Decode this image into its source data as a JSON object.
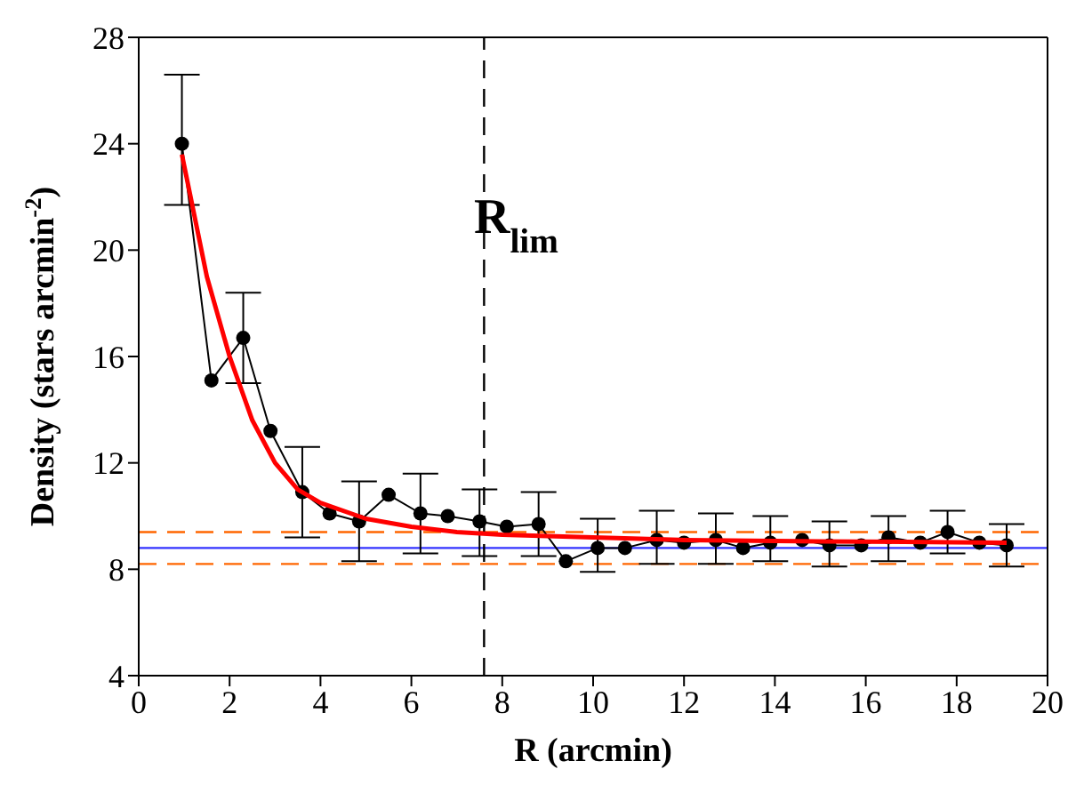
{
  "chart_data": {
    "type": "line",
    "xlabel": "R  (arcmin)",
    "ylabel": "Density (stars arcmin$^{-2}$)",
    "xlim": [
      0,
      20
    ],
    "xticks": [
      0,
      2,
      4,
      6,
      8,
      10,
      12,
      14,
      16,
      18,
      20
    ],
    "ylim": [
      4,
      28
    ],
    "yticks": [
      4,
      8,
      12,
      16,
      20,
      24,
      28
    ],
    "grid": false,
    "legend": false,
    "series": [
      {
        "color": "#000000",
        "marker": "circle",
        "x": [
          0.95,
          1.6,
          2.3,
          2.9,
          3.6,
          4.2,
          4.85,
          5.5,
          6.2,
          6.8,
          7.5,
          8.1,
          8.8,
          9.4,
          10.1,
          10.7,
          11.4,
          12.0,
          12.7,
          13.3,
          13.9,
          14.6,
          15.2,
          15.9,
          16.5,
          17.2,
          17.8,
          18.5,
          19.1
        ],
        "values": [
          24.0,
          15.1,
          16.7,
          13.2,
          10.9,
          10.1,
          9.8,
          10.8,
          10.1,
          10.0,
          9.8,
          9.6,
          9.7,
          8.3,
          8.8,
          8.8,
          9.1,
          9.0,
          9.1,
          8.8,
          9.0,
          9.1,
          8.9,
          8.9,
          9.2,
          9.0,
          9.4,
          9.0,
          8.9
        ],
        "errors": [
          [
            21.7,
            26.6
          ],
          null,
          [
            15.0,
            18.4
          ],
          null,
          [
            9.2,
            12.6
          ],
          null,
          [
            8.3,
            11.3
          ],
          null,
          [
            8.6,
            11.6
          ],
          null,
          [
            8.5,
            11.0
          ],
          null,
          [
            8.5,
            10.9
          ],
          null,
          [
            7.9,
            9.9
          ],
          null,
          [
            8.2,
            10.2
          ],
          null,
          [
            8.2,
            10.1
          ],
          null,
          [
            8.3,
            10.0
          ],
          null,
          [
            8.1,
            9.8
          ],
          null,
          [
            8.3,
            10.0
          ],
          null,
          [
            8.6,
            10.2
          ],
          null,
          [
            8.1,
            9.7
          ]
        ]
      },
      {
        "color": "#ff0000",
        "marker": "none",
        "x": [
          0.95,
          1.5,
          2.0,
          2.5,
          3.0,
          3.5,
          4.0,
          5.0,
          6.0,
          7.0,
          8.0,
          10.0,
          12.0,
          15.0,
          19.1
        ],
        "values": [
          23.6,
          19.0,
          16.0,
          13.6,
          12.0,
          11.0,
          10.5,
          9.9,
          9.6,
          9.4,
          9.3,
          9.2,
          9.1,
          9.05,
          9.0
        ]
      }
    ],
    "ref_lines": [
      {
        "axis": "y",
        "value": 8.8,
        "color": "#3333ff",
        "line_style": "solid"
      },
      {
        "axis": "y",
        "value": 9.4,
        "color": "#ff6600",
        "line_style": "dashed"
      },
      {
        "axis": "y",
        "value": 8.2,
        "color": "#ff6600",
        "line_style": "dashed"
      },
      {
        "axis": "x",
        "value": 7.6,
        "color": "#000000",
        "line_style": "dashed",
        "label": "R$_{lim}$"
      }
    ]
  }
}
